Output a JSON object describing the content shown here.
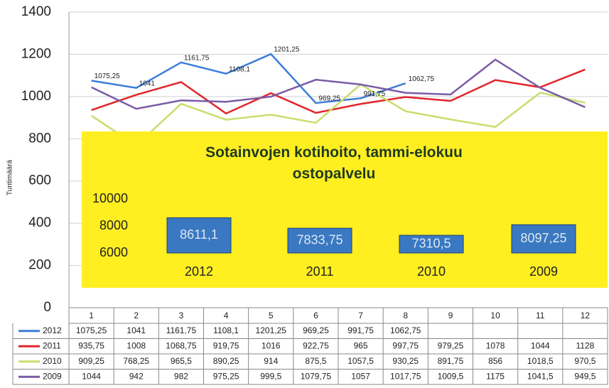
{
  "chart_data": [
    {
      "type": "line",
      "y_label": "Tuntimäärä",
      "categories": [
        "1",
        "2",
        "3",
        "4",
        "5",
        "6",
        "7",
        "8",
        "9",
        "10",
        "11",
        "12"
      ],
      "ylim": [
        0,
        1400
      ],
      "yticks": [
        0,
        200,
        400,
        600,
        800,
        1000,
        1200,
        1400
      ],
      "grid": true,
      "series": [
        {
          "name": "2012",
          "color": "#3c7dd9",
          "values": [
            1075.25,
            1041,
            1161.75,
            1108.1,
            1201.25,
            969.25,
            991.75,
            1062.75,
            null,
            null,
            null,
            null
          ],
          "value_labels": [
            "1075,25",
            "1041",
            "1161,75",
            "1108,1",
            "1201,25",
            "969,25",
            "991,75",
            "1062,75",
            null,
            null,
            null,
            null
          ]
        },
        {
          "name": "2011",
          "color": "#e0262a",
          "values": [
            935.75,
            1008,
            1068.75,
            919.75,
            1016,
            922.75,
            965,
            997.75,
            979.25,
            1078,
            1044,
            1128
          ],
          "value_labels": [
            "935,75",
            "1008",
            "1068,75",
            "919,75",
            "1016",
            "922,75",
            "965",
            "997,75",
            "979,25",
            "1078",
            "1044",
            "1128"
          ]
        },
        {
          "name": "2010",
          "color": "#c6df6c",
          "values": [
            909.25,
            768.25,
            965.5,
            890.25,
            914,
            875.5,
            1057.5,
            930.25,
            891.75,
            856,
            1018.5,
            970.5
          ],
          "value_labels": [
            "909,25",
            "768,25",
            "965,5",
            "890,25",
            "914",
            "875,5",
            "1057,5",
            "930,25",
            "891,75",
            "856",
            "1018,5",
            "970,5"
          ]
        },
        {
          "name": "2009",
          "color": "#7b5aa6",
          "values": [
            1044,
            942,
            982,
            975.25,
            999.5,
            1079.75,
            1057,
            1017.75,
            1009.5,
            1175,
            1041.5,
            949.5
          ],
          "value_labels": [
            "1044",
            "942",
            "982",
            "975,25",
            "999,5",
            "1079,75",
            "1057",
            "1017,75",
            "1009,5",
            "1175",
            "1041,5",
            "949,5"
          ]
        }
      ]
    },
    {
      "type": "bar",
      "title": "Sotainvojen kotihoito, tammi-elokuu ostopalvelu",
      "categories": [
        "2012",
        "2011",
        "2010",
        "2009"
      ],
      "values": [
        8611.1,
        7833.75,
        7310.5,
        8097.25
      ],
      "value_labels": [
        "8611,1",
        "7833,75",
        "7310,5",
        "8097,25"
      ],
      "color": "#3a78c2",
      "ylim": [
        6000,
        10000
      ],
      "yticks": [
        6000,
        8000,
        10000
      ]
    }
  ]
}
